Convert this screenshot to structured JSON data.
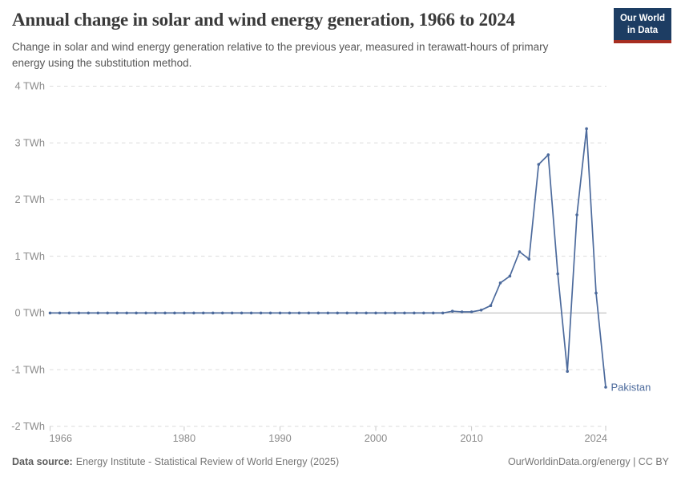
{
  "header": {
    "title": "Annual change in solar and wind energy generation, 1966 to 2024",
    "subtitle": "Change in solar and wind energy generation relative to the previous year, measured in terawatt-hours of primary energy using the substitution method.",
    "logo": {
      "line1": "Our World",
      "line2": "in Data",
      "bg_color": "#1d3d63",
      "stripe_color": "#a62e21"
    }
  },
  "chart_data": {
    "type": "line",
    "title": "Annual change in solar and wind energy generation, 1966 to 2024",
    "unit": "TWh",
    "xlim": [
      1966,
      2024
    ],
    "ylim": [
      -2,
      4
    ],
    "x_ticks": [
      1966,
      1980,
      1990,
      2000,
      2010,
      2024
    ],
    "y_ticks": [
      4,
      3,
      2,
      1,
      0,
      -1,
      -2
    ],
    "y_tick_format": "{v} TWh",
    "grid": "horizontal-dashed",
    "zero_line": true,
    "legend_position": "end-of-line-label",
    "colors": {
      "grid": "#dcdcdc",
      "zero_line": "#b5b5b5",
      "tick": "#c9c9c9",
      "axis_text": "#8b8b8b"
    },
    "series": [
      {
        "name": "Pakistan",
        "color": "#4C6A9C",
        "years": [
          1966,
          1967,
          1968,
          1969,
          1970,
          1971,
          1972,
          1973,
          1974,
          1975,
          1976,
          1977,
          1978,
          1979,
          1980,
          1981,
          1982,
          1983,
          1984,
          1985,
          1986,
          1987,
          1988,
          1989,
          1990,
          1991,
          1992,
          1993,
          1994,
          1995,
          1996,
          1997,
          1998,
          1999,
          2000,
          2001,
          2002,
          2003,
          2004,
          2005,
          2006,
          2007,
          2008,
          2009,
          2010,
          2011,
          2012,
          2013,
          2014,
          2015,
          2016,
          2017,
          2018,
          2019,
          2020,
          2021,
          2022,
          2023,
          2024
        ],
        "values": [
          0,
          0,
          0,
          0,
          0,
          0,
          0,
          0,
          0,
          0,
          0,
          0,
          0,
          0,
          0,
          0,
          0,
          0,
          0,
          0,
          0,
          0,
          0,
          0,
          0,
          0,
          0,
          0,
          0,
          0,
          0,
          0,
          0,
          0,
          0,
          0,
          0,
          0,
          0,
          0,
          0,
          0,
          0.03,
          0.02,
          0.02,
          0.05,
          0.13,
          0.53,
          0.65,
          1.08,
          0.95,
          2.62,
          2.79,
          0.69,
          -1.03,
          1.73,
          3.25,
          0.35,
          -1.31
        ]
      }
    ]
  },
  "footer": {
    "datasource_label": "Data source:",
    "datasource_text": "Energy Institute - Statistical Review of World Energy (2025)",
    "credit_text": "OurWorldinData.org/energy | CC BY"
  }
}
